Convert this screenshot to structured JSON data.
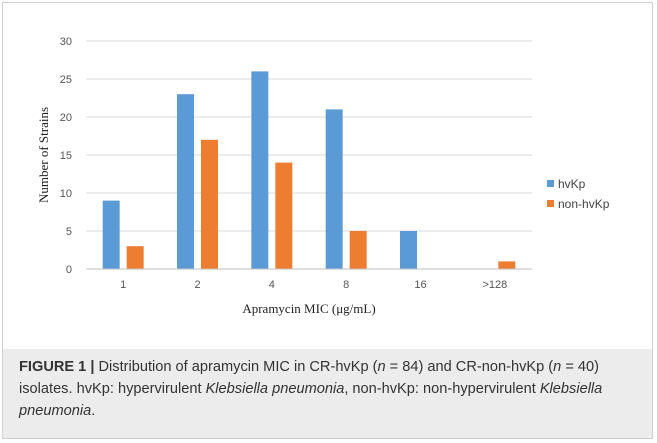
{
  "chart_data": {
    "type": "bar",
    "categories": [
      "1",
      "2",
      "4",
      "8",
      "16",
      ">128"
    ],
    "series": [
      {
        "name": "hvKp",
        "values": [
          9,
          23,
          26,
          21,
          5,
          0
        ],
        "color": "#5b9bd5"
      },
      {
        "name": "non-hvKp",
        "values": [
          3,
          17,
          14,
          5,
          0,
          1
        ],
        "color": "#ed7d31"
      }
    ],
    "xlabel": "Apramycin MIC (μg/mL)",
    "ylabel": "Number of Strains",
    "ylim": [
      0,
      30
    ],
    "yticks": [
      "0",
      "5",
      "10",
      "15",
      "20",
      "25",
      "30"
    ],
    "grid": true,
    "legend_position": "right"
  },
  "caption": {
    "label": "FIGURE 1 |",
    "seg1": " Distribution of apramycin MIC in CR-hvKp (",
    "n1": "n",
    "seg2": " = 84) and CR-non-hvKp (",
    "n2": "n",
    "seg3": " = 40) isolates. hvKp: hypervirulent ",
    "species1": "Klebsiella pneumonia",
    "seg4": ", non-hvKp: non-hypervirulent ",
    "species2": "Klebsiella pneumonia",
    "seg5": "."
  }
}
